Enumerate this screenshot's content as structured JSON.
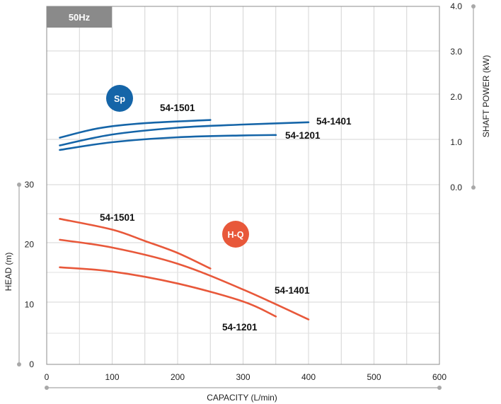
{
  "chart_data": {
    "type": "line",
    "title": "",
    "frequency_tag": "50Hz",
    "xlabel": "CAPACITY (L/min)",
    "ylabel_left": "HEAD (m)",
    "ylabel_right": "SHAFT POWER (kW)",
    "xlim": [
      0,
      600
    ],
    "ylim_head": [
      0,
      30
    ],
    "ylim_power": [
      0.0,
      4.0
    ],
    "x_ticks": [
      0,
      100,
      200,
      300,
      400,
      500,
      600
    ],
    "head_ticks": [
      0,
      10,
      20,
      30
    ],
    "power_ticks": [
      "0.0",
      "1.0",
      "2.0",
      "3.0",
      "4.0"
    ],
    "grid": true,
    "colors": {
      "power": "#1565a8",
      "head": "#e8583a",
      "badge_sp": "#1565a8",
      "badge_hq": "#e8583a",
      "hz_tag": "#8a8a8a"
    },
    "badges": {
      "power": "Sp",
      "head": "H-Q"
    },
    "power_series": [
      {
        "name": "54-1501",
        "x": [
          20,
          80,
          150,
          250
        ],
        "y": [
          1.1,
          1.31,
          1.42,
          1.49
        ]
      },
      {
        "name": "54-1401",
        "x": [
          20,
          100,
          200,
          300,
          400
        ],
        "y": [
          0.93,
          1.17,
          1.32,
          1.39,
          1.44
        ]
      },
      {
        "name": "54-1201",
        "x": [
          20,
          100,
          200,
          300,
          350
        ],
        "y": [
          0.83,
          1.0,
          1.11,
          1.15,
          1.16
        ]
      }
    ],
    "head_series": [
      {
        "name": "54-1501",
        "x": [
          20,
          100,
          150,
          200,
          250
        ],
        "y": [
          24.3,
          22.5,
          20.6,
          18.6,
          16.0
        ]
      },
      {
        "name": "54-1401",
        "x": [
          20,
          100,
          200,
          300,
          400
        ],
        "y": [
          20.8,
          19.5,
          16.8,
          12.5,
          7.5
        ]
      },
      {
        "name": "54-1201",
        "x": [
          20,
          100,
          200,
          300,
          350
        ],
        "y": [
          16.2,
          15.5,
          13.5,
          10.5,
          8.0
        ]
      }
    ]
  }
}
